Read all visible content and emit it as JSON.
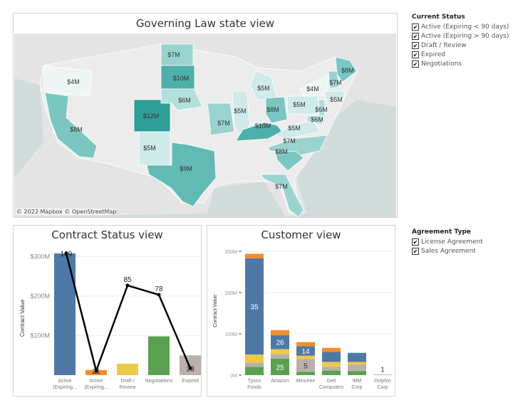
{
  "map": {
    "title": "Governing Law state view",
    "copyright": "© 2022 Mapbox © OpenStreetMap",
    "colors": {
      "12": "#2f9e98",
      "10": "#4fb0aa",
      "9": "#62bab4",
      "8": "#7cc6c1",
      "7": "#99d3cf",
      "6": "#b4dfdc",
      "5": "#cfeae8",
      "4": "#eef5f5"
    },
    "labels": [
      "$4M",
      "$8M",
      "$12M",
      "$5M",
      "$9M",
      "$7M",
      "$10M",
      "$6M",
      "$7M",
      "$5M",
      "$5M",
      "$8M",
      "$10M",
      "$5M",
      "$4M",
      "$8M",
      "$7M",
      "$5M",
      "$6M",
      "$6M",
      "$5M",
      "$7M",
      "$8M",
      "$7M"
    ],
    "values": [
      4,
      8,
      12,
      5,
      9,
      7,
      10,
      6,
      7,
      5,
      5,
      8,
      10,
      5,
      4,
      8,
      7,
      5,
      6,
      6,
      5,
      7,
      8,
      7
    ]
  },
  "filters": {
    "current_status": {
      "title": "Current Status",
      "items": [
        "Active (Expiring < 90 days)",
        "Active (Expiring > 90 days)",
        "Draft / Review",
        "Expired",
        "Negotiations"
      ],
      "checked": [
        true,
        true,
        true,
        true,
        true
      ]
    },
    "agreement_type": {
      "title": "Agreement Type",
      "items": [
        "License Agreement",
        "Sales Agreement"
      ],
      "checked": [
        true,
        true
      ]
    },
    "check_glyph": "✔"
  },
  "chart_data": [
    {
      "type": "bar",
      "title": "Contract Status view",
      "ylabel": "Contract Value",
      "categories": [
        "Active (Expiring...",
        "Active (Expiring...",
        "Draft / Review",
        "Negotiations",
        "Expired"
      ],
      "values": [
        308,
        13,
        29,
        98,
        50
      ],
      "colors": [
        "#4e79a7",
        "#f28e2b",
        "#edc948",
        "#59a14f",
        "#bab0ac"
      ],
      "yticks": [
        "$100M",
        "$200M",
        "$300M"
      ],
      "ytick_values": [
        100,
        200,
        300
      ],
      "ylim": [
        0,
        310
      ],
      "line": {
        "values": [
          109,
          21,
          85,
          78,
          23
        ],
        "labels": [
          "109",
          "21",
          "85",
          "78",
          "23"
        ],
        "color": "#000000"
      },
      "grid": true
    },
    {
      "type": "bar",
      "stacked": true,
      "title": "Customer view",
      "ylabel": "Contract Value",
      "categories": [
        "Tyson Foods",
        "Amazon",
        "Minctree",
        "Dell Computers",
        "IBM Corp",
        "Dolphin Corp"
      ],
      "series": [
        {
          "color": "#59a14f",
          "values": [
            20,
            40,
            8,
            11,
            10,
            1
          ]
        },
        {
          "color": "#bab0ac",
          "values": [
            10,
            11,
            31,
            10,
            15,
            0
          ]
        },
        {
          "color": "#edc948",
          "values": [
            20,
            12,
            8,
            11,
            7,
            0
          ]
        },
        {
          "color": "#4e79a7",
          "values": [
            233,
            34,
            23,
            24,
            22,
            0
          ]
        },
        {
          "color": "#f28e2b",
          "values": [
            11,
            12,
            10,
            10,
            0,
            0
          ]
        }
      ],
      "data_labels": [
        {
          "category": "Tyson Foods",
          "series": 3,
          "text": "35"
        },
        {
          "category": "Amazon",
          "series": 3,
          "text": "26"
        },
        {
          "category": "Amazon",
          "series": 0,
          "text": "25"
        },
        {
          "category": "Minctree",
          "series": 3,
          "text": "14"
        },
        {
          "category": "Minctree",
          "series": 1,
          "text": "5"
        },
        {
          "category": "Dolphin Corp",
          "series": 0,
          "text": "1",
          "above": true
        }
      ],
      "yticks": [
        "0M",
        "100M",
        "200M",
        "300M"
      ],
      "ytick_values": [
        0,
        100,
        200,
        300
      ],
      "ylim": [
        0,
        300
      ],
      "grid": true
    }
  ]
}
